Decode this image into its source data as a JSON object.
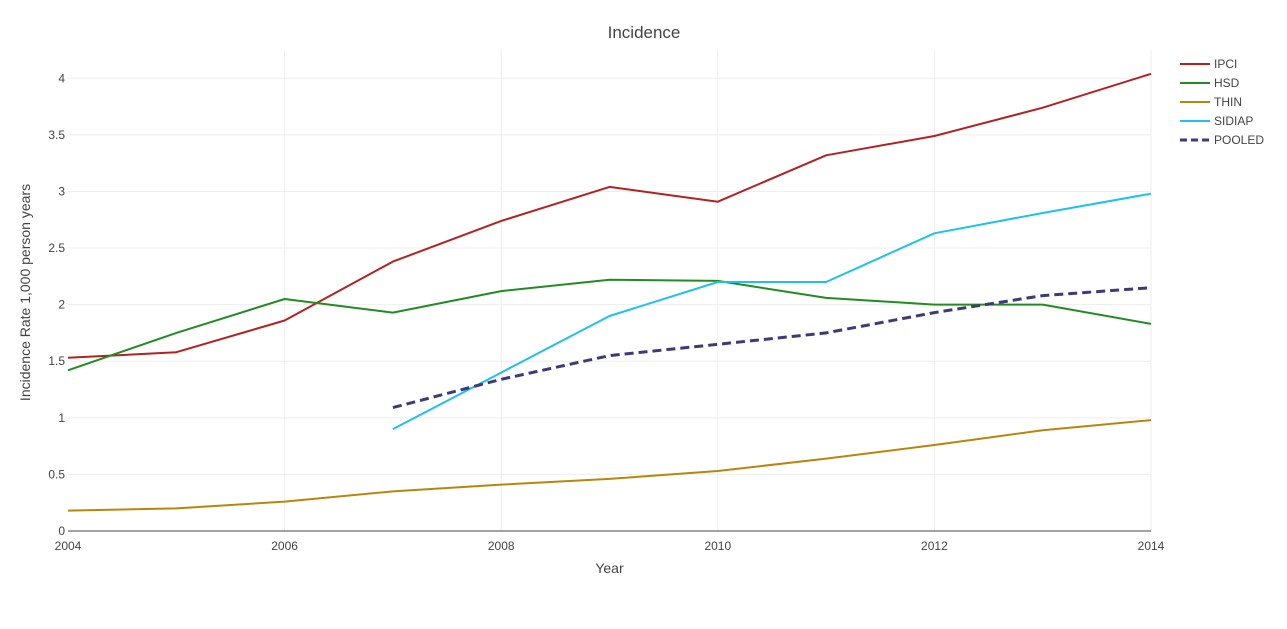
{
  "chart_data": {
    "type": "line",
    "title": "Incidence",
    "xlabel": "Year",
    "ylabel": "Incidence Rate 1,000 person years",
    "xlim": [
      2004,
      2014
    ],
    "ylim": [
      0,
      4.25
    ],
    "x_ticks": [
      "2004",
      "2006",
      "2008",
      "2010",
      "2012",
      "2014"
    ],
    "y_ticks": [
      "0",
      "0.5",
      "1",
      "1.5",
      "2",
      "2.5",
      "3",
      "3.5",
      "4"
    ],
    "grid": true,
    "legend_position": "top-right",
    "series": [
      {
        "name": "IPCI",
        "color": "#b22222",
        "dash": false,
        "x": [
          2004,
          2005,
          2006,
          2007,
          2008,
          2009,
          2010,
          2011,
          2012,
          2013,
          2014
        ],
        "y": [
          1.53,
          1.58,
          1.86,
          2.38,
          2.74,
          3.04,
          2.91,
          3.32,
          3.49,
          3.74,
          4.04
        ]
      },
      {
        "name": "HSD",
        "color": "#228b22",
        "dash": false,
        "x": [
          2004,
          2005,
          2006,
          2007,
          2008,
          2009,
          2010,
          2011,
          2012,
          2013,
          2014
        ],
        "y": [
          1.42,
          1.75,
          2.05,
          1.93,
          2.12,
          2.22,
          2.21,
          2.06,
          2.0,
          2.0,
          1.83
        ]
      },
      {
        "name": "THIN",
        "color": "#b8860b",
        "dash": false,
        "x": [
          2004,
          2005,
          2006,
          2007,
          2008,
          2009,
          2010,
          2011,
          2012,
          2013,
          2014
        ],
        "y": [
          0.18,
          0.2,
          0.26,
          0.35,
          0.41,
          0.46,
          0.53,
          0.64,
          0.76,
          0.89,
          0.98
        ]
      },
      {
        "name": "SIDIAP",
        "color": "#1ec0f0",
        "dash": false,
        "x": [
          2007,
          2008,
          2009,
          2010,
          2011,
          2012,
          2013,
          2014
        ],
        "y": [
          0.9,
          1.4,
          1.9,
          2.2,
          2.2,
          2.63,
          2.81,
          2.98
        ]
      },
      {
        "name": "POOLED",
        "color": "#3d3a7a",
        "dash": true,
        "x": [
          2007,
          2008,
          2009,
          2010,
          2011,
          2012,
          2013,
          2014
        ],
        "y": [
          1.09,
          1.34,
          1.55,
          1.65,
          1.75,
          1.93,
          2.08,
          2.15
        ]
      }
    ]
  }
}
